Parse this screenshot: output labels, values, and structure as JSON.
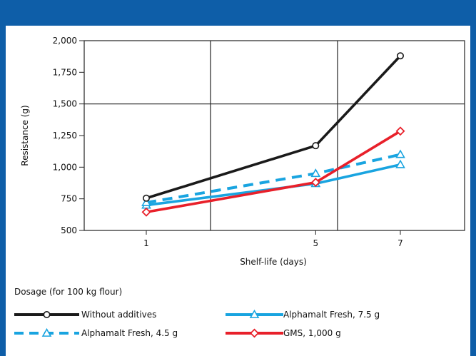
{
  "chart_data": {
    "type": "line",
    "title": "",
    "xlabel": "Shelf-life (days)",
    "ylabel": "Resistance (g)",
    "x": [
      1,
      5,
      7
    ],
    "x_tick_labels": [
      "1",
      "5",
      "7"
    ],
    "ylim": [
      500,
      2000
    ],
    "y_ticks": [
      500,
      750,
      1000,
      1250,
      1500,
      1750,
      2000
    ],
    "y_tick_labels": [
      "500",
      "750",
      "1,000",
      "1,250",
      "1,500",
      "1,750",
      "2,000"
    ],
    "grid": true,
    "legend_title": "Dosage (for 100 kg flour)",
    "legend_position": "bottom",
    "series": [
      {
        "name": "Without additives",
        "values": [
          755,
          1170,
          1880
        ],
        "color": "#1a1a1a",
        "marker": "circle",
        "dash": "solid"
      },
      {
        "name": "Alphamalt Fresh, 7.5 g",
        "values": [
          700,
          870,
          1020
        ],
        "color": "#19a4e0",
        "marker": "triangle",
        "dash": "solid"
      },
      {
        "name": "Alphamalt Fresh, 4.5 g",
        "values": [
          720,
          950,
          1100
        ],
        "color": "#19a4e0",
        "marker": "triangle",
        "dash": "dashed"
      },
      {
        "name": "GMS, 1,000 g",
        "values": [
          645,
          880,
          1285
        ],
        "color": "#e8202a",
        "marker": "diamond",
        "dash": "solid"
      }
    ]
  }
}
